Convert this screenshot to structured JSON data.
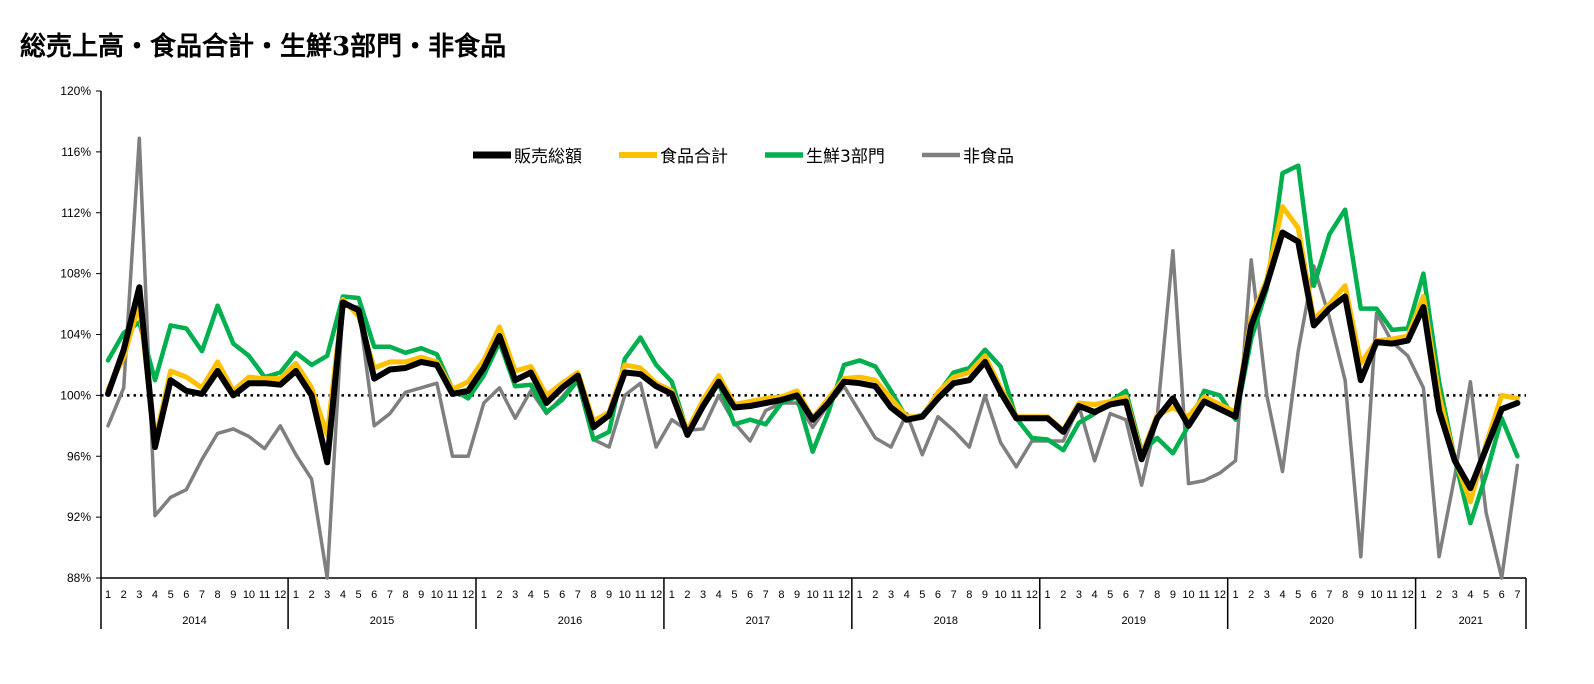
{
  "chart_data": {
    "type": "line",
    "title": "総売上高・食品合計・生鮮3部門・非食品",
    "xlabel": "",
    "ylabel": "",
    "ylim": [
      88,
      120
    ],
    "y_ticks": [
      "88%",
      "92%",
      "96%",
      "100%",
      "104%",
      "108%",
      "112%",
      "116%",
      "120%"
    ],
    "y_tick_values": [
      88,
      92,
      96,
      100,
      104,
      108,
      112,
      116,
      120
    ],
    "reference_line": 100,
    "month_labels": [
      "1",
      "2",
      "3",
      "4",
      "5",
      "6",
      "7",
      "8",
      "9",
      "10",
      "11",
      "12"
    ],
    "years": [
      {
        "label": "2014",
        "months": 12
      },
      {
        "label": "2015",
        "months": 12
      },
      {
        "label": "2016",
        "months": 12
      },
      {
        "label": "2017",
        "months": 12
      },
      {
        "label": "2018",
        "months": 12
      },
      {
        "label": "2019",
        "months": 12
      },
      {
        "label": "2020",
        "months": 12
      },
      {
        "label": "2021",
        "months": 7
      }
    ],
    "legend_position": "top-center",
    "grid": false,
    "series": [
      {
        "name": "販売総額",
        "color": "#000000",
        "values": [
          100.1,
          103,
          107.1,
          96.6,
          101,
          100.3,
          100.1,
          101.6,
          100,
          100.8,
          100.8,
          100.7,
          101.6,
          100,
          95.6,
          106.1,
          105.6,
          101.1,
          101.7,
          101.8,
          102.2,
          102,
          100.1,
          100.3,
          101.8,
          103.9,
          101,
          101.5,
          99.5,
          100.5,
          101.3,
          97.9,
          98.7,
          101.5,
          101.4,
          100.6,
          100.1,
          97.4,
          99.3,
          100.9,
          99.2,
          99.3,
          99.5,
          99.7,
          100,
          98.4,
          99.5,
          100.9,
          100.8,
          100.6,
          99.2,
          98.4,
          98.6,
          99.8,
          100.8,
          101,
          102.2,
          100.2,
          98.5,
          98.5,
          98.5,
          97.6,
          99.3,
          98.9,
          99.4,
          99.6,
          95.8,
          98.5,
          99.8,
          98,
          99.6,
          99.1,
          98.6,
          104.6,
          107.3,
          110.7,
          110.1,
          104.6,
          105.7,
          106.5,
          101,
          103.5,
          103.4,
          103.6,
          105.8,
          99,
          95.7,
          93.9,
          96.5,
          99.1,
          99.5
        ]
      },
      {
        "name": "食品合計",
        "color": "#FFC000",
        "values": [
          100.4,
          102.5,
          106,
          97,
          101.6,
          101.2,
          100.5,
          102.2,
          100.3,
          101.2,
          101.1,
          101.1,
          102.1,
          100.5,
          97.4,
          106.3,
          105.2,
          101.8,
          102.2,
          102.2,
          102.5,
          102.2,
          100.4,
          100.9,
          102.3,
          104.5,
          101.6,
          101.9,
          100,
          100.8,
          101.5,
          98.3,
          98.9,
          102,
          101.8,
          100.8,
          100.3,
          97.7,
          99.7,
          101.3,
          99.4,
          99.6,
          99.8,
          99.9,
          100.3,
          98.5,
          99.8,
          101.1,
          101.2,
          101,
          99.8,
          98.6,
          98.6,
          100.2,
          101.2,
          101.5,
          102.6,
          100.5,
          98.6,
          98.6,
          98.6,
          97.7,
          99.5,
          99.4,
          99.6,
          99.9,
          96.1,
          98.7,
          99.2,
          98.6,
          99.9,
          99.4,
          98.9,
          105.1,
          107.6,
          112.4,
          111,
          105,
          106,
          107.2,
          102.1,
          103.6,
          103.7,
          103.9,
          106.5,
          100,
          95.8,
          93,
          96.8,
          100,
          99.8
        ]
      },
      {
        "name": "生鮮3部門",
        "color": "#00B04F",
        "values": [
          102.3,
          104.1,
          104.8,
          101,
          104.6,
          104.4,
          102.9,
          105.9,
          103.4,
          102.6,
          101.2,
          101.5,
          102.8,
          102,
          102.6,
          106.5,
          106.4,
          103.2,
          103.2,
          102.8,
          103.1,
          102.7,
          100.4,
          99.8,
          101.3,
          103.5,
          100.6,
          100.7,
          98.9,
          99.7,
          101,
          97.1,
          97.6,
          102.4,
          103.8,
          102,
          100.9,
          97.6,
          99.3,
          100.8,
          98.1,
          98.4,
          98.1,
          99.5,
          99.9,
          96.3,
          98.9,
          102,
          102.3,
          101.9,
          100.3,
          98.5,
          98.7,
          100.1,
          101.5,
          101.8,
          103,
          101.9,
          98.5,
          97.2,
          97.1,
          96.4,
          98.2,
          98.8,
          99.6,
          100.3,
          96.3,
          97.2,
          96.2,
          98,
          100.3,
          100,
          98.4,
          103.7,
          107,
          114.6,
          115.1,
          107.2,
          110.6,
          112.2,
          105.7,
          105.7,
          104.3,
          104.4,
          108,
          100.9,
          95.8,
          91.6,
          94.8,
          98.5,
          96
        ]
      },
      {
        "name": "非食品",
        "color": "#7F7F7F",
        "values": [
          98,
          100.5,
          116.9,
          92.1,
          93.3,
          93.8,
          95.8,
          97.5,
          97.8,
          97.3,
          96.5,
          98,
          96.1,
          94.5,
          88,
          105.9,
          105.8,
          98,
          98.8,
          100.2,
          100.5,
          100.8,
          96,
          96,
          99.5,
          100.5,
          98.5,
          100.3,
          98.8,
          99.9,
          101.1,
          97.1,
          96.6,
          100,
          100.8,
          96.6,
          98.4,
          97.7,
          97.8,
          100,
          98.2,
          97,
          99,
          99.5,
          99.5,
          97.9,
          99.4,
          100.6,
          98.9,
          97.2,
          96.6,
          98.8,
          96.1,
          98.6,
          97.7,
          96.6,
          100,
          96.9,
          95.3,
          97,
          97,
          97,
          99.3,
          95.7,
          98.8,
          98.4,
          94.1,
          98.6,
          109.5,
          94.2,
          94.4,
          94.9,
          95.7,
          108.9,
          100,
          95,
          102.9,
          108.5,
          105.1,
          101,
          89.4,
          105.4,
          103.5,
          102.6,
          100.5,
          89.4,
          94.7,
          100.9,
          92.3,
          88,
          95.4
        ]
      }
    ]
  }
}
